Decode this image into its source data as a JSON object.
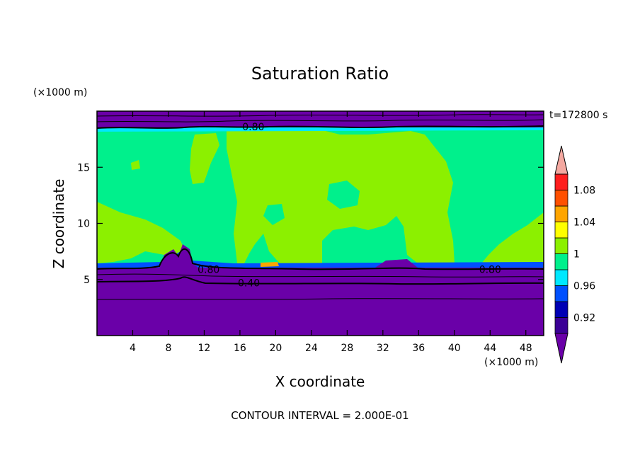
{
  "chart_data": {
    "type": "contour",
    "title": "Saturation Ratio",
    "time_label": "t=172800 s",
    "xlabel": "X coordinate",
    "ylabel": "Z coordinate",
    "x_unit": "(×1000 m)",
    "y_unit": "(×1000 m)",
    "footer": "CONTOUR INTERVAL = 2.000E-01",
    "xlim": [
      0,
      50
    ],
    "ylim": [
      0,
      20
    ],
    "x_ticks": [
      4,
      8,
      12,
      16,
      20,
      24,
      28,
      32,
      36,
      40,
      44,
      48
    ],
    "y_ticks": [
      5,
      10,
      15
    ],
    "contour_labels": [
      {
        "text": "0.80",
        "x": 17.5,
        "z": 18.6
      },
      {
        "text": "0.80",
        "x": 12.5,
        "z": 5.9
      },
      {
        "text": "0.80",
        "x": 44.0,
        "z": 5.9
      },
      {
        "text": "0.40",
        "x": 17.0,
        "z": 4.7
      }
    ],
    "colorbar": {
      "tick_labels": [
        "0.92",
        "0.96",
        "1",
        "1.04",
        "1.08"
      ],
      "levels": [
        0.9,
        0.92,
        0.94,
        0.96,
        0.98,
        1.0,
        1.02,
        1.04,
        1.06,
        1.08,
        1.1
      ],
      "colors": [
        "#6a00a8",
        "#3b0096",
        "#0000b4",
        "#0050ff",
        "#00e8ff",
        "#00f08c",
        "#8cf000",
        "#ffff00",
        "#ffa500",
        "#ff5000",
        "#ff1e1e",
        "#f4a8a0"
      ]
    }
  }
}
